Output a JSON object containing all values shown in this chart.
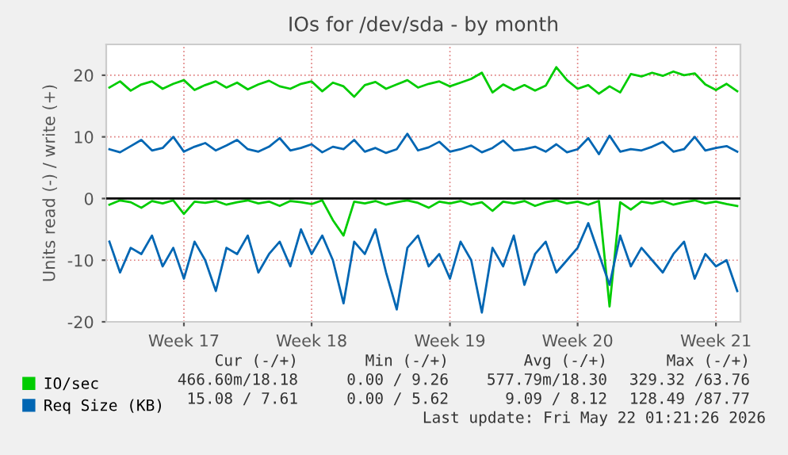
{
  "chart_data": {
    "type": "line",
    "title": "IOs for /dev/sda - by month",
    "ylabel": "Units read (-) / write (+)",
    "categories": [
      null,
      null,
      null,
      null,
      null,
      null,
      null,
      "Week 17",
      null,
      null,
      null,
      null,
      null,
      null,
      null,
      null,
      null,
      null,
      null,
      "Week 18",
      null,
      null,
      null,
      null,
      null,
      null,
      null,
      null,
      null,
      null,
      null,
      null,
      "Week 19",
      null,
      null,
      null,
      null,
      null,
      null,
      null,
      null,
      null,
      null,
      null,
      "Week 20",
      null,
      null,
      null,
      null,
      null,
      null,
      null,
      null,
      null,
      null,
      null,
      null,
      "Week 21",
      null,
      null
    ],
    "series": [
      {
        "name": "IO/sec",
        "color": "#00cc00",
        "values": [
          18,
          19,
          17.5,
          18.5,
          19,
          17.8,
          18.6,
          19.2,
          17.6,
          18.4,
          19,
          18,
          18.8,
          17.7,
          18.5,
          19.1,
          18.2,
          17.8,
          18.6,
          19,
          17.4,
          18.8,
          18.2,
          16.5,
          18.4,
          18.9,
          17.8,
          18.5,
          19.2,
          18,
          18.6,
          19,
          18.2,
          18.8,
          19.4,
          20.4,
          17.2,
          18.5,
          17.6,
          18.4,
          17.5,
          18.3,
          21.3,
          19.2,
          17.8,
          18.4,
          17,
          18.2,
          17.2,
          20.2,
          19.8,
          20.4,
          19.9,
          20.6,
          20,
          20.3,
          18.5,
          17.6,
          18.6,
          17.4
        ]
      },
      {
        "color": "#00cc00",
        "values": [
          -1,
          -0.3,
          -0.6,
          -1.5,
          -0.4,
          -0.8,
          -0.3,
          -2.5,
          -0.5,
          -0.7,
          -0.4,
          -1,
          -0.6,
          -0.3,
          -0.8,
          -0.5,
          -1.2,
          -0.4,
          -0.6,
          -0.9,
          -0.3,
          -3.5,
          -6,
          -0.5,
          -0.8,
          -0.4,
          -1,
          -0.6,
          -0.3,
          -0.7,
          -1.5,
          -0.5,
          -0.8,
          -0.4,
          -1,
          -0.6,
          -2,
          -0.5,
          -0.8,
          -0.4,
          -1.2,
          -0.6,
          -0.3,
          -0.8,
          -0.5,
          -1,
          -0.4,
          -17.5,
          -0.6,
          -1.8,
          -0.5,
          -0.8,
          -0.4,
          -1,
          -0.6,
          -0.3,
          -0.8,
          -0.5,
          -0.9,
          -1.2
        ]
      },
      {
        "name": "Req Size (KB)",
        "color": "#0066b3",
        "values": [
          8,
          7.5,
          8.5,
          9.5,
          7.8,
          8.2,
          10,
          7.6,
          8.4,
          9,
          7.8,
          8.6,
          9.5,
          8,
          7.6,
          8.4,
          9.8,
          7.8,
          8.2,
          8.8,
          7.5,
          8.4,
          8,
          9.5,
          7.6,
          8.2,
          7.4,
          8,
          10.5,
          7.8,
          8.3,
          9.2,
          7.6,
          8,
          8.6,
          7.5,
          8.2,
          9.4,
          7.8,
          8,
          8.4,
          7.6,
          8.8,
          7.5,
          8,
          9.8,
          7.2,
          10.2,
          7.6,
          8,
          7.8,
          8.4,
          9.2,
          7.6,
          8,
          10,
          7.8,
          8.2,
          8.5,
          7.6
        ]
      },
      {
        "color": "#0066b3",
        "values": [
          -7,
          -12,
          -8,
          -9,
          -6,
          -11,
          -8,
          -13,
          -7,
          -10,
          -15,
          -8,
          -9,
          -6,
          -12,
          -9,
          -7,
          -11,
          -5,
          -9,
          -6,
          -10,
          -17,
          -7,
          -9,
          -5,
          -12,
          -18,
          -8,
          -6,
          -11,
          -9,
          -13,
          -7,
          -10,
          -18.5,
          -8,
          -11,
          -6,
          -14,
          -9,
          -7,
          -12,
          -10,
          -8,
          -4,
          -9,
          -14,
          -6,
          -11,
          -8,
          -10,
          -12,
          -9,
          -7,
          -13,
          -9,
          -11,
          -10,
          -15
        ]
      }
    ],
    "ylim": [
      -20,
      25
    ],
    "yticks": [
      -20,
      -10,
      0,
      10,
      20
    ],
    "ref_lines": [
      {
        "axis": "y",
        "value": 0,
        "color": "#000000"
      }
    ],
    "grid": true,
    "legend": "bottom left",
    "annotations": [
      "Cur (-/+)",
      "Min (-/+)",
      "Avg (-/+)",
      "Max (-/+)",
      "466.60m/18.18",
      "0.00 / 9.26",
      "577.79m/18.30",
      "329.32 /63.76",
      "15.08 / 7.61",
      "0.00 / 5.62",
      "9.09 / 8.12",
      "128.49 /87.77",
      "Last update: Fri May 22 01:21:26 2026"
    ]
  }
}
